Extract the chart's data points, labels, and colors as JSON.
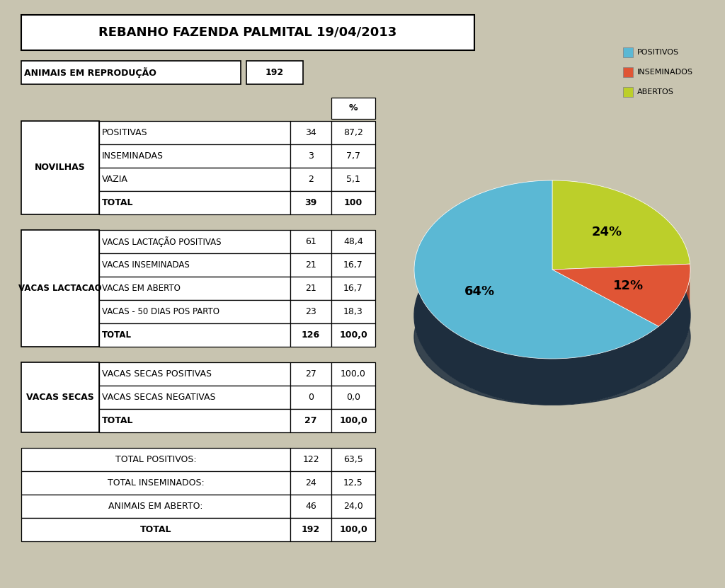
{
  "title": "REBANHO FAZENDA PALMITAL 19/04/2013",
  "animais_em_reproducao_label": "ANIMAIS EM REPRODUÇÃO",
  "animais_em_reproducao_value": "192",
  "bg_color": "#c8c4b0",
  "white": "#ffffff",
  "novilhas": {
    "label": "NOVILHAS",
    "rows": [
      [
        "POSITIVAS",
        "34",
        "87,2"
      ],
      [
        "INSEMINADAS",
        "3",
        "7,7"
      ],
      [
        "VAZIA",
        "2",
        "5,1"
      ],
      [
        "TOTAL",
        "39",
        "100"
      ]
    ]
  },
  "vacas_lactacao": {
    "label": "VACAS LACTACAO",
    "rows": [
      [
        "VACAS LACTAÇÃO POSITIVAS",
        "61",
        "48,4"
      ],
      [
        "VACAS INSEMINADAS",
        "21",
        "16,7"
      ],
      [
        "VACAS EM ABERTO",
        "21",
        "16,7"
      ],
      [
        "VACAS - 50 DIAS POS PARTO",
        "23",
        "18,3"
      ],
      [
        "TOTAL",
        "126",
        "100,0"
      ]
    ]
  },
  "vacas_secas": {
    "label": "VACAS SECAS",
    "rows": [
      [
        "VACAS SECAS POSITIVAS",
        "27",
        "100,0"
      ],
      [
        "VACAS SECAS NEGATIVAS",
        "0",
        "0,0"
      ],
      [
        "TOTAL",
        "27",
        "100,0"
      ]
    ]
  },
  "totais": {
    "rows": [
      [
        "TOTAL POSITIVOS:",
        "122",
        "63,5"
      ],
      [
        "TOTAL INSEMINADOS:",
        "24",
        "12,5"
      ],
      [
        "ANIMAIS EM ABERTO:",
        "46",
        "24,0"
      ],
      [
        "TOTAL",
        "192",
        "100,0"
      ]
    ]
  },
  "pie": {
    "labels": [
      "POSITIVOS",
      "INSEMINADOS",
      "ABERTOS"
    ],
    "values": [
      64,
      12,
      24
    ],
    "colors": [
      "#5bb8d4",
      "#e05535",
      "#bccf2a"
    ],
    "shadow_color": "#1e2e3e",
    "pct_labels": [
      "64%",
      "12%",
      "24%"
    ],
    "startangle": 90
  }
}
